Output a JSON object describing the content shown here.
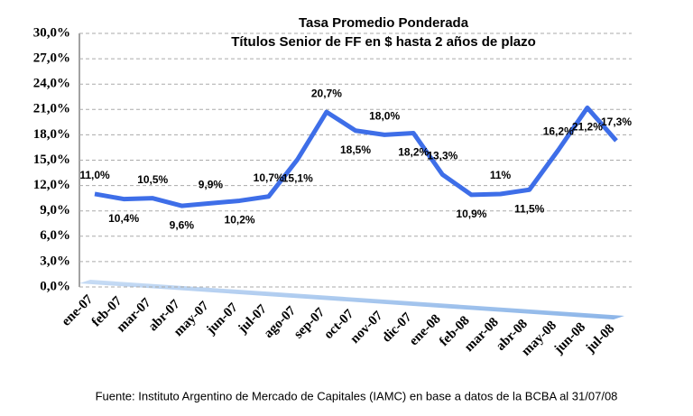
{
  "chart_data": {
    "type": "line",
    "title": "Tasa Promedio Ponderada",
    "subtitle": "Títulos Senior de FF en $ hasta 2 años de plazo",
    "source": "Fuente: Instituto Argentino de Mercado de Capitales (IAMC) en base a datos de la BCBA al 31/07/08",
    "categories": [
      "ene-07",
      "feb-07",
      "mar-07",
      "abr-07",
      "may-07",
      "jun-07",
      "jul-07",
      "ago-07",
      "sep-07",
      "oct-07",
      "nov-07",
      "dic-07",
      "ene-08",
      "feb-08",
      "mar-08",
      "abr-08",
      "may-08",
      "jun-08",
      "jul-08"
    ],
    "series": [
      {
        "color": "#3e6ee8",
        "values": [
          11.0,
          10.4,
          10.5,
          9.6,
          9.9,
          10.2,
          10.7,
          15.1,
          20.7,
          18.5,
          18.0,
          18.2,
          13.3,
          10.9,
          11,
          11.5,
          16.2,
          21.2,
          17.3
        ],
        "value_labels": [
          "11,0%",
          "10,4%",
          "10,5%",
          "9,6%",
          "9,9%",
          "10,2%",
          "10,7%",
          "15,1%",
          "20,7%",
          "18,5%",
          "18,0%",
          "18,2%",
          "13,3%",
          "10,9%",
          "11%",
          "11,5%",
          "16,2%",
          "21,2%",
          "17,3%"
        ]
      }
    ],
    "ylim": [
      0,
      30
    ],
    "yticks": [
      {
        "value": 0,
        "label": "0,0%"
      },
      {
        "value": 3,
        "label": "3,0%"
      },
      {
        "value": 6,
        "label": "6,0%"
      },
      {
        "value": 9,
        "label": "9,0%"
      },
      {
        "value": 12,
        "label": "12,0%"
      },
      {
        "value": 15,
        "label": "15,0%"
      },
      {
        "value": 18,
        "label": "18,0%"
      },
      {
        "value": 21,
        "label": "21,0%"
      },
      {
        "value": 24,
        "label": "24,0%"
      },
      {
        "value": 27,
        "label": "27,0%"
      },
      {
        "value": 30,
        "label": "30,0%"
      }
    ],
    "grid": true
  }
}
